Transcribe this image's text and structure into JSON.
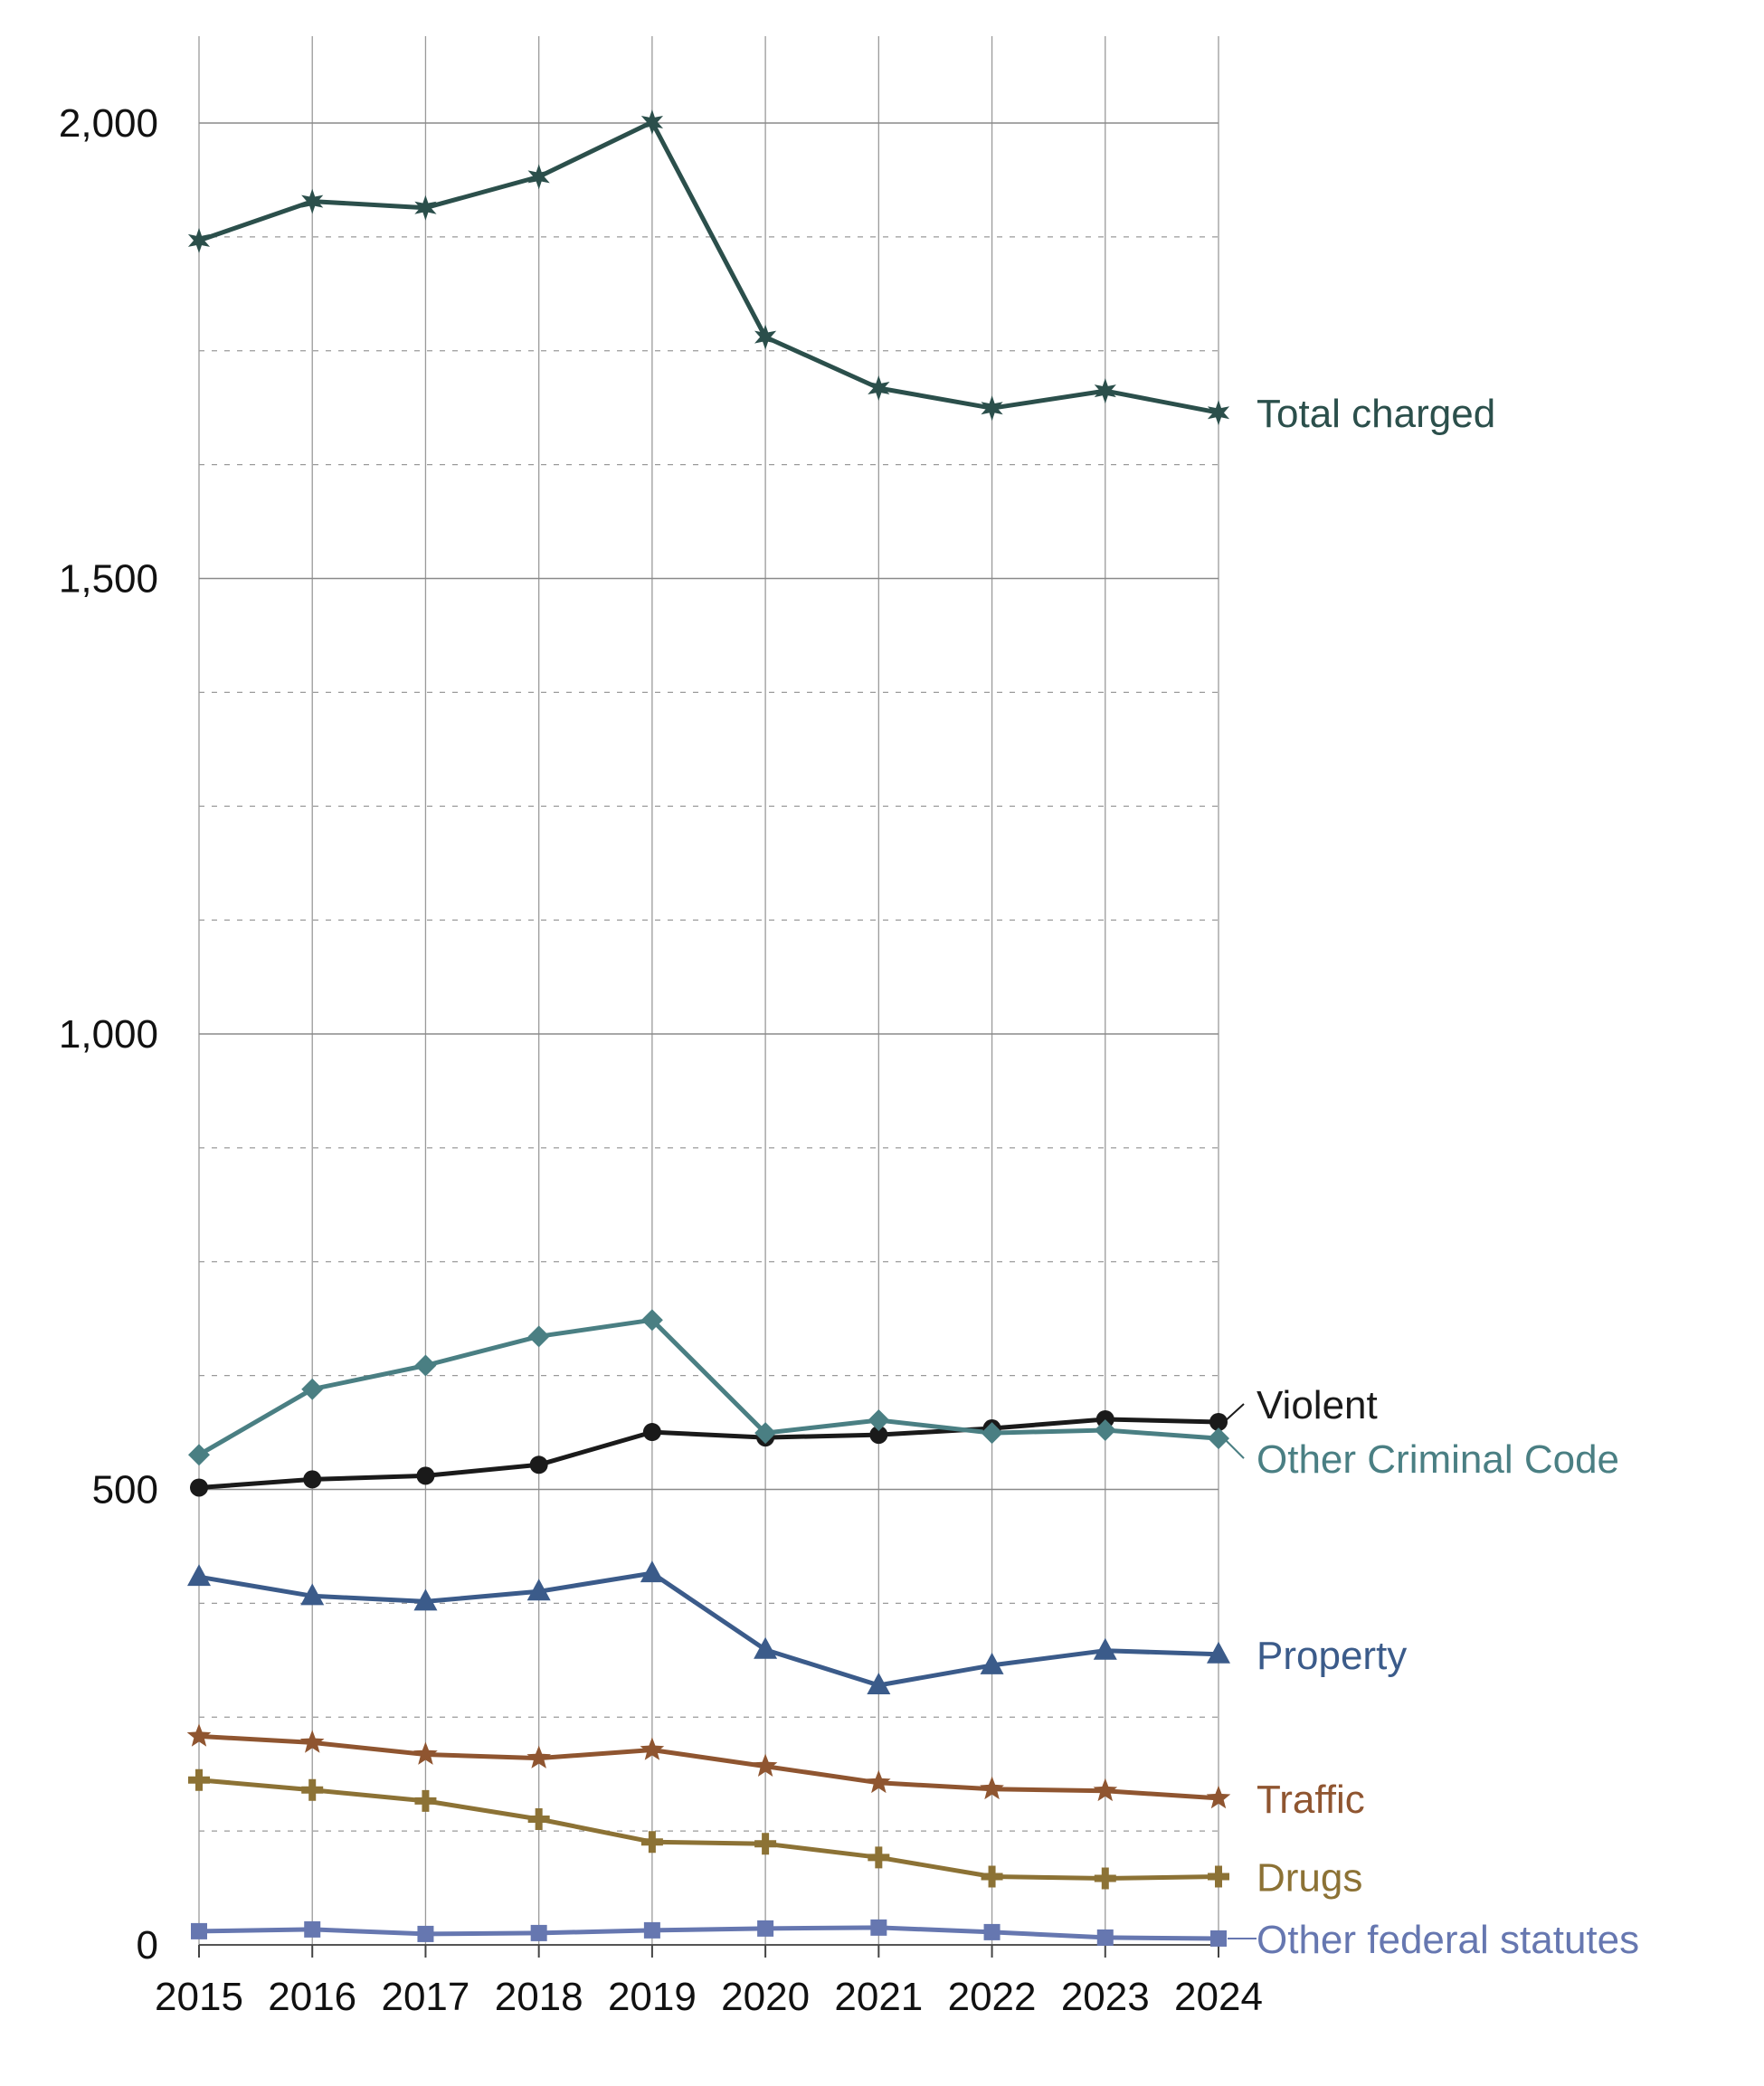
{
  "chart_data": {
    "type": "line",
    "title": "",
    "xlabel": "",
    "ylabel": "",
    "x": [
      "2015",
      "2016",
      "2017",
      "2018",
      "2019",
      "2020",
      "2021",
      "2022",
      "2023",
      "2024"
    ],
    "ylim": [
      0,
      2100
    ],
    "yticks": [
      0,
      500,
      1000,
      1500,
      2000
    ],
    "ytick_labels": [
      "0",
      "500",
      "1,000",
      "1,500",
      "2,000"
    ],
    "minor_gridlines_dashed": true,
    "grid": true,
    "legend": "direct labels at right end of lines",
    "series": [
      {
        "name": "Total charged",
        "color": "#2b4f4b",
        "marker": "star6",
        "values": [
          1871,
          1914,
          1907,
          1941,
          2001,
          1765,
          1709,
          1687,
          1706,
          1682
        ]
      },
      {
        "name": "Violent",
        "color": "#1a1a1a",
        "marker": "circle",
        "values": [
          502,
          511,
          515,
          527,
          563,
          557,
          560,
          567,
          577,
          574
        ]
      },
      {
        "name": "Other Criminal Code",
        "color": "#4a7f83",
        "marker": "diamond",
        "values": [
          538,
          610,
          636,
          668,
          686,
          562,
          576,
          562,
          565,
          556
        ]
      },
      {
        "name": "Property",
        "color": "#3b5b8a",
        "marker": "triangle",
        "values": [
          404,
          383,
          377,
          388,
          408,
          324,
          285,
          307,
          323,
          319
        ]
      },
      {
        "name": "Traffic",
        "color": "#8f5530",
        "marker": "star5",
        "values": [
          229,
          222,
          209,
          205,
          214,
          196,
          178,
          171,
          169,
          161
        ]
      },
      {
        "name": "Drugs",
        "color": "#8c7235",
        "marker": "plus",
        "values": [
          181,
          170,
          158,
          138,
          113,
          111,
          96,
          75,
          73,
          75
        ]
      },
      {
        "name": "Other federal statutes",
        "color": "#6677b0",
        "marker": "square",
        "values": [
          15,
          17,
          12,
          13,
          16,
          18,
          19,
          14,
          8,
          7
        ]
      }
    ]
  }
}
